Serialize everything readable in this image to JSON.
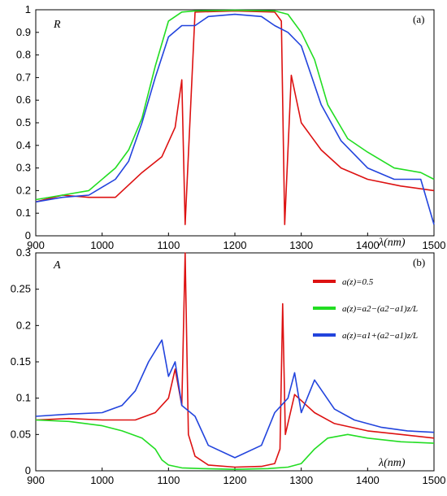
{
  "chart_data": [
    {
      "type": "line",
      "panel_label": "(a)",
      "ylabel": "R",
      "xlabel": "λ(nm)",
      "xlim": [
        900,
        1500
      ],
      "ylim": [
        0,
        1
      ],
      "xticks": [
        "900",
        "1000",
        "1100",
        "1200",
        "1300",
        "1400",
        "1500"
      ],
      "yticks": [
        "0",
        "0.1",
        "0.2",
        "0.3",
        "0.4",
        "0.5",
        "0.6",
        "0.7",
        "0.8",
        "0.9",
        "1"
      ],
      "series": [
        {
          "color": "#dd1111",
          "x": [
            900,
            940,
            980,
            1020,
            1060,
            1090,
            1110,
            1120,
            1125,
            1140,
            1200,
            1260,
            1270,
            1275,
            1285,
            1300,
            1330,
            1360,
            1400,
            1450,
            1500
          ],
          "y": [
            0.15,
            0.18,
            0.17,
            0.17,
            0.28,
            0.35,
            0.48,
            0.69,
            0.05,
            0.99,
            0.995,
            0.99,
            0.95,
            0.05,
            0.71,
            0.5,
            0.38,
            0.3,
            0.25,
            0.22,
            0.2
          ]
        },
        {
          "color": "#22dd22",
          "x": [
            900,
            940,
            980,
            1020,
            1040,
            1060,
            1080,
            1100,
            1120,
            1140,
            1200,
            1260,
            1280,
            1300,
            1320,
            1340,
            1370,
            1400,
            1440,
            1480,
            1500
          ],
          "y": [
            0.16,
            0.18,
            0.2,
            0.3,
            0.38,
            0.52,
            0.75,
            0.95,
            0.99,
            0.995,
            0.998,
            0.995,
            0.98,
            0.9,
            0.78,
            0.58,
            0.43,
            0.37,
            0.3,
            0.28,
            0.25
          ]
        },
        {
          "color": "#2244dd",
          "x": [
            900,
            940,
            980,
            1020,
            1040,
            1060,
            1080,
            1100,
            1120,
            1140,
            1160,
            1200,
            1240,
            1260,
            1280,
            1300,
            1330,
            1360,
            1400,
            1440,
            1480,
            1500
          ],
          "y": [
            0.15,
            0.17,
            0.18,
            0.25,
            0.33,
            0.5,
            0.7,
            0.88,
            0.93,
            0.93,
            0.97,
            0.98,
            0.97,
            0.93,
            0.9,
            0.84,
            0.58,
            0.42,
            0.3,
            0.25,
            0.25,
            0.05
          ]
        }
      ]
    },
    {
      "type": "line",
      "panel_label": "(b)",
      "ylabel": "A",
      "xlabel": "λ(nm)",
      "xlim": [
        900,
        1500
      ],
      "ylim": [
        0,
        0.3
      ],
      "xticks": [
        "900",
        "1000",
        "1100",
        "1200",
        "1300",
        "1400",
        "1500"
      ],
      "yticks": [
        "0",
        "0.05",
        "0.1",
        "0.15",
        "0.2",
        "0.25",
        "0.3"
      ],
      "legend": {
        "placement": "top-right",
        "entries": [
          {
            "label": "a(z)=0.5",
            "color": "#dd1111"
          },
          {
            "label": "a(z)=a2−(a2−a1)z/L",
            "color": "#22dd22"
          },
          {
            "label": "a(z)=a1+(a2−a1)z/L",
            "color": "#2244dd"
          }
        ]
      },
      "series": [
        {
          "color": "#dd1111",
          "x": [
            900,
            950,
            1000,
            1050,
            1080,
            1100,
            1110,
            1120,
            1125,
            1130,
            1140,
            1160,
            1200,
            1240,
            1260,
            1268,
            1272,
            1276,
            1290,
            1320,
            1350,
            1400,
            1450,
            1500
          ],
          "y": [
            0.07,
            0.072,
            0.07,
            0.07,
            0.08,
            0.1,
            0.14,
            0.09,
            0.3,
            0.05,
            0.02,
            0.008,
            0.005,
            0.006,
            0.01,
            0.03,
            0.23,
            0.05,
            0.105,
            0.08,
            0.065,
            0.055,
            0.05,
            0.045
          ]
        },
        {
          "color": "#22dd22",
          "x": [
            900,
            950,
            1000,
            1030,
            1060,
            1080,
            1090,
            1100,
            1120,
            1150,
            1200,
            1250,
            1280,
            1300,
            1320,
            1340,
            1370,
            1400,
            1450,
            1500
          ],
          "y": [
            0.07,
            0.068,
            0.062,
            0.055,
            0.045,
            0.03,
            0.015,
            0.008,
            0.004,
            0.003,
            0.002,
            0.003,
            0.005,
            0.01,
            0.03,
            0.045,
            0.05,
            0.045,
            0.04,
            0.038
          ]
        },
        {
          "color": "#2244dd",
          "x": [
            900,
            950,
            1000,
            1030,
            1050,
            1070,
            1090,
            1100,
            1110,
            1120,
            1140,
            1160,
            1200,
            1240,
            1260,
            1280,
            1290,
            1300,
            1320,
            1350,
            1380,
            1420,
            1460,
            1500
          ],
          "y": [
            0.075,
            0.078,
            0.08,
            0.09,
            0.11,
            0.15,
            0.18,
            0.13,
            0.15,
            0.09,
            0.075,
            0.035,
            0.018,
            0.035,
            0.08,
            0.1,
            0.135,
            0.08,
            0.125,
            0.085,
            0.07,
            0.06,
            0.055,
            0.053
          ]
        }
      ]
    }
  ]
}
